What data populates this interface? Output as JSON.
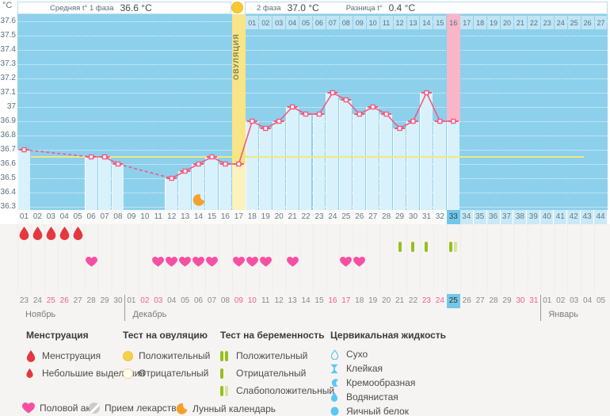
{
  "header": {
    "phase1_label": "Средняя t° 1 фаза",
    "phase1_value": "36.6 °C",
    "phase2_label": "2 фаза",
    "phase2_value": "37.0 °C",
    "diff_label": "Разница t°",
    "diff_value": "0.4 °C"
  },
  "y_axis": {
    "unit": "°C",
    "ticks": [
      "37.6",
      "37.5",
      "37.4",
      "37.3",
      "37.2",
      "37.1",
      "37",
      "36.9",
      "36.8",
      "36.7",
      "36.6",
      "36.5",
      "36.4",
      "36.3"
    ]
  },
  "ovulation_label": "ОВУЛЯЦИЯ",
  "chart_data": {
    "type": "line",
    "x_days": [
      "01",
      "02",
      "03",
      "04",
      "05",
      "06",
      "07",
      "08",
      "09",
      "10",
      "11",
      "12",
      "13",
      "14",
      "15",
      "16",
      "17",
      "18",
      "19",
      "20",
      "21",
      "22",
      "23",
      "24",
      "25",
      "26",
      "27",
      "28",
      "29",
      "30",
      "31",
      "32",
      "33",
      "34",
      "35",
      "36",
      "37",
      "38",
      "39",
      "40",
      "41",
      "42",
      "43",
      "44"
    ],
    "temperatures": [
      36.7,
      null,
      null,
      null,
      null,
      36.65,
      36.65,
      36.6,
      null,
      null,
      null,
      36.5,
      36.55,
      36.6,
      36.65,
      36.6,
      36.6,
      36.9,
      36.85,
      36.9,
      37.0,
      36.95,
      36.95,
      37.1,
      37.05,
      36.95,
      37.0,
      36.95,
      36.85,
      36.9,
      37.1,
      36.9,
      36.9,
      null,
      null,
      null,
      null,
      null,
      null,
      null,
      null,
      null,
      null,
      null
    ],
    "ylim": [
      36.3,
      37.6
    ],
    "coverline": 36.65,
    "ovulation_day": 17,
    "selected_day": 33,
    "dpo_labels": [
      "01",
      "02",
      "03",
      "04",
      "05",
      "06",
      "07",
      "08",
      "09",
      "10",
      "11",
      "12",
      "13",
      "14",
      "15",
      "16",
      "17",
      "18",
      "19",
      "20",
      "21",
      "22",
      "23",
      "24",
      "25",
      "26",
      "27"
    ],
    "dpo_highlight": "16",
    "solid_segments": [
      [
        6,
        7,
        8
      ],
      [
        12,
        13,
        14,
        15,
        16,
        17,
        18,
        19,
        20,
        21,
        22,
        23,
        24,
        25,
        26,
        27,
        28,
        29,
        30,
        31,
        32,
        33
      ]
    ],
    "dashed_segments": [
      [
        1,
        6
      ],
      [
        8,
        12
      ]
    ]
  },
  "markers": {
    "menstruation_days": [
      1,
      2,
      3,
      4,
      5
    ],
    "intercourse_days": [
      6,
      11,
      12,
      13,
      14,
      15,
      17,
      18,
      19,
      21,
      25,
      26
    ],
    "pregnancy_tests": [
      {
        "day": 29,
        "result": "negative"
      },
      {
        "day": 30,
        "result": "negative"
      },
      {
        "day": 31,
        "result": "negative"
      },
      {
        "day": 33,
        "result": "weak_positive"
      }
    ],
    "moon_day": 14
  },
  "dates": {
    "cells": [
      {
        "label": "23"
      },
      {
        "label": "24"
      },
      {
        "label": "25",
        "weekend": true
      },
      {
        "label": "26",
        "weekend": true
      },
      {
        "label": "27"
      },
      {
        "label": "28"
      },
      {
        "label": "29"
      },
      {
        "label": "30"
      },
      {
        "label": "01"
      },
      {
        "label": "02",
        "weekend": true
      },
      {
        "label": "03",
        "weekend": true
      },
      {
        "label": "04"
      },
      {
        "label": "05"
      },
      {
        "label": "06"
      },
      {
        "label": "07"
      },
      {
        "label": "08"
      },
      {
        "label": "09",
        "weekend": true
      },
      {
        "label": "10",
        "weekend": true
      },
      {
        "label": "11"
      },
      {
        "label": "12"
      },
      {
        "label": "13"
      },
      {
        "label": "14"
      },
      {
        "label": "15"
      },
      {
        "label": "16",
        "weekend": true
      },
      {
        "label": "17",
        "weekend": true
      },
      {
        "label": "18"
      },
      {
        "label": "19"
      },
      {
        "label": "20"
      },
      {
        "label": "21"
      },
      {
        "label": "22"
      },
      {
        "label": "23",
        "weekend": true
      },
      {
        "label": "24",
        "weekend": true
      },
      {
        "label": "25",
        "selected": true
      },
      {
        "label": "26"
      },
      {
        "label": "27"
      },
      {
        "label": "28"
      },
      {
        "label": "29"
      },
      {
        "label": "30",
        "weekend": true
      },
      {
        "label": "31",
        "weekend": true
      },
      {
        "label": "01"
      },
      {
        "label": "02"
      },
      {
        "label": "03"
      },
      {
        "label": "04"
      },
      {
        "label": "05"
      }
    ],
    "months": [
      {
        "name": "Ноябрь",
        "start_col": 1
      },
      {
        "name": "Декабрь",
        "start_col": 9
      },
      {
        "name": "Январь",
        "start_col": 40
      }
    ]
  },
  "legend": {
    "menstruation": {
      "title": "Менструация",
      "items": [
        "Менструация",
        "Небольшие выделения"
      ]
    },
    "ovulation_test": {
      "title": "Тест на овуляцию",
      "items": [
        "Положительный",
        "Отрицательный"
      ]
    },
    "pregnancy_test": {
      "title": "Тест на беременность",
      "items": [
        "Положительный",
        "Отрицательный",
        "Слабоположительный"
      ]
    },
    "cervical_fluid": {
      "title": "Цервикальная жидкость",
      "items": [
        "Сухо",
        "Клейкая",
        "Кремообразная",
        "Водянистая",
        "Яичный белок"
      ]
    },
    "bottom": [
      "Половой акт",
      "Прием лекарств",
      "Лунный календарь"
    ]
  },
  "colors": {
    "chart_bg": "#8dd0ec",
    "bar": "#d9f1fb",
    "line": "#f25a7e",
    "coverline": "#f0e87f",
    "ovulation_col": "#f7e586",
    "ovulation_col_light": "#fcf2bd",
    "dpo_cell": "#c2e5f4",
    "dpo_hot": "#f9b4c8",
    "pink_col": "#f9b6c9",
    "selected_cell": "#74c7e9",
    "drop_red": "#e5383e",
    "heart_pink": "#f750a3",
    "test_green": "#94c11f",
    "test_green_light": "#d4e49b",
    "cervical_blue": "#5bc8f0",
    "moon_orange": "#f5a02c"
  }
}
